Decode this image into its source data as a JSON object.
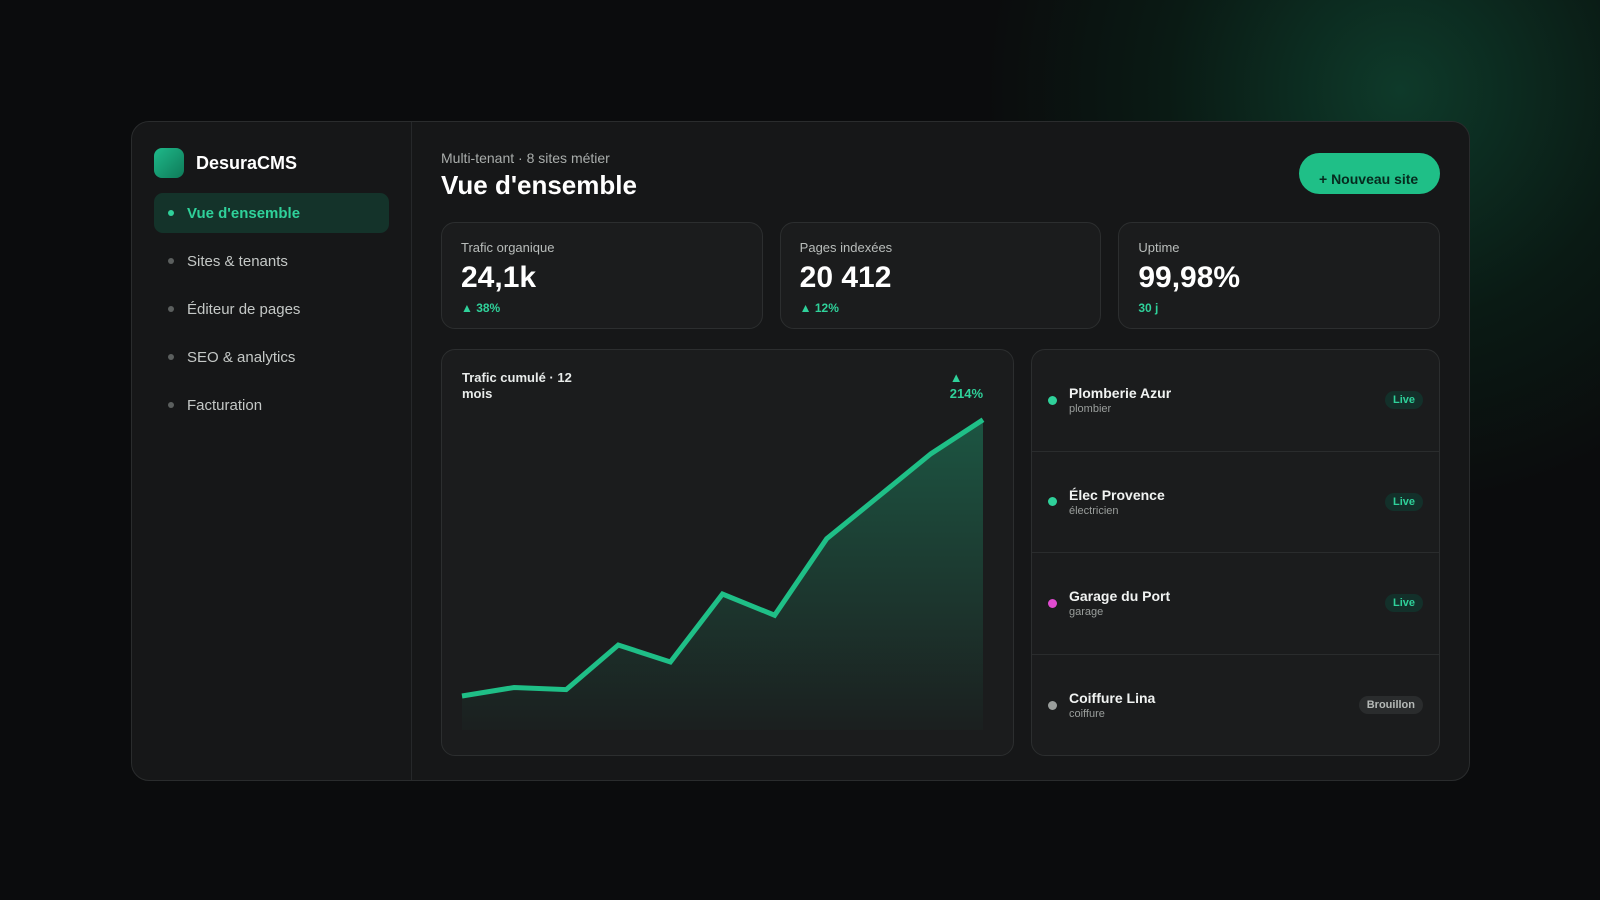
{
  "brand": {
    "name": "DesuraCMS"
  },
  "sidebar": {
    "items": [
      {
        "label": "Vue d'ensemble",
        "active": true
      },
      {
        "label": "Sites & tenants",
        "active": false
      },
      {
        "label": "Éditeur de pages",
        "active": false
      },
      {
        "label": "SEO & analytics",
        "active": false
      },
      {
        "label": "Facturation",
        "active": false
      }
    ]
  },
  "header": {
    "subtitle": "Multi-tenant · 8 sites métier",
    "title": "Vue d'ensemble",
    "new_site_label": "+ Nouveau site"
  },
  "stats": [
    {
      "label": "Trafic organique",
      "value": "24,1k",
      "delta": "▲ 38%"
    },
    {
      "label": "Pages indexées",
      "value": "20 412",
      "delta": "▲ 12%"
    },
    {
      "label": "Uptime",
      "value": "99,98%",
      "delta": "30 j"
    }
  ],
  "chart": {
    "title": "Trafic cumulé · 12 mois",
    "delta_arrow": "▲",
    "delta_value": "214%"
  },
  "chart_data": {
    "type": "area",
    "title": "Trafic cumulé · 12 mois",
    "x": [
      1,
      2,
      3,
      4,
      5,
      6,
      7,
      8,
      9,
      10,
      11
    ],
    "values": [
      8,
      10,
      9.5,
      20,
      16,
      32,
      27,
      45,
      55,
      65,
      73
    ],
    "ylim": [
      0,
      80
    ],
    "grid": false,
    "legend": "none",
    "color": "#1fbf87"
  },
  "sites": [
    {
      "name": "Plomberie Azur",
      "type": "plombier",
      "status": "Live",
      "status_kind": "live",
      "color": "#2fd19a"
    },
    {
      "name": "Élec Provence",
      "type": "électricien",
      "status": "Live",
      "status_kind": "live",
      "color": "#2fd19a"
    },
    {
      "name": "Garage du Port",
      "type": "garage",
      "status": "Live",
      "status_kind": "live",
      "color": "#e04bd0"
    },
    {
      "name": "Coiffure Lina",
      "type": "coiffure",
      "status": "Brouillon",
      "status_kind": "draft",
      "color": "#9a9e9c"
    }
  ]
}
